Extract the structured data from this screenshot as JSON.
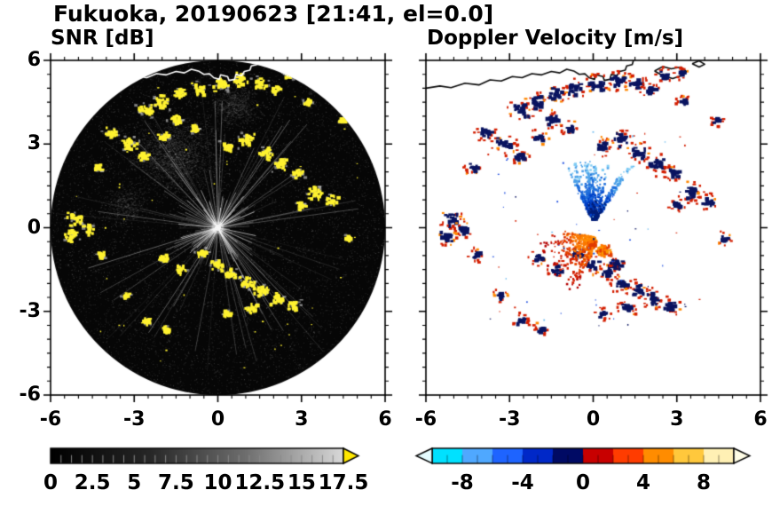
{
  "title": "Fukuoka, 20190623 [21:41, el=0.0]",
  "panels": {
    "snr": {
      "title": "SNR [dB]"
    },
    "doppler": {
      "title": "Doppler Velocity [m/s]"
    }
  },
  "chart_data": [
    {
      "type": "heatmap",
      "title": "SNR [dB]",
      "xlim": [
        -6,
        6
      ],
      "ylim": [
        -6,
        6
      ],
      "xticks": [
        -6,
        -3,
        0,
        3,
        6
      ],
      "xtick_labels": [
        "-6",
        "-3",
        "0",
        "3",
        "6"
      ],
      "yticks": [
        6,
        3,
        0,
        -3,
        -6
      ],
      "ytick_labels": [
        "6",
        "3",
        "0",
        "-3",
        "-6"
      ],
      "minor_tick_step": 0.5,
      "scan_radius": 6,
      "background": "#060606",
      "echo_color": "#FFF230",
      "colorbar": {
        "range": [
          0,
          17.5
        ],
        "tick_values": [
          0,
          2.5,
          5,
          7.5,
          10,
          12.5,
          15,
          17.5
        ],
        "tick_labels": [
          "0",
          "2.5",
          "5",
          "7.5",
          "10",
          "12.5",
          "15",
          "17.5"
        ],
        "gradient": [
          "#000000",
          "#262626",
          "#6E6E6E",
          "#D9D9D9"
        ],
        "over_arrow_color": "#FFE800"
      },
      "texture": {
        "noise_n": 16000,
        "streak_n": 120,
        "spoke_n": 14,
        "bright_n": 55,
        "clouds": [
          {
            "x": -1.6,
            "y": 2.6,
            "sigma": 2.1,
            "n": 2600
          },
          {
            "x": 0.6,
            "y": 4.4,
            "sigma": 1.2,
            "n": 900
          },
          {
            "x": -3.3,
            "y": 0.8,
            "sigma": 1.0,
            "n": 500
          }
        ]
      },
      "echo_clusters": [
        [
          -2.6,
          4.25,
          1.6
        ],
        [
          -2.05,
          4.55,
          1.5
        ],
        [
          -1.4,
          4.85,
          1.3
        ],
        [
          -0.7,
          5.0,
          1.4
        ],
        [
          0.1,
          5.15,
          1.6
        ],
        [
          0.8,
          5.35,
          1.6
        ],
        [
          1.5,
          5.2,
          1.3
        ],
        [
          2.0,
          5.0,
          1.0
        ],
        [
          2.5,
          5.5,
          0.9
        ],
        [
          3.1,
          5.6,
          0.7
        ],
        [
          -3.9,
          3.45,
          1.2
        ],
        [
          -3.25,
          3.05,
          1.6
        ],
        [
          -2.7,
          2.6,
          1.0
        ],
        [
          -4.35,
          2.2,
          0.9
        ],
        [
          -2.0,
          3.3,
          1.0
        ],
        [
          -1.55,
          3.9,
          1.2
        ],
        [
          -0.85,
          3.6,
          0.9
        ],
        [
          0.3,
          2.95,
          1.2
        ],
        [
          1.0,
          3.2,
          1.5
        ],
        [
          1.65,
          2.7,
          1.5
        ],
        [
          2.25,
          2.3,
          1.5
        ],
        [
          2.85,
          2.0,
          1.2
        ],
        [
          3.2,
          4.55,
          0.8
        ],
        [
          4.4,
          3.9,
          0.7
        ],
        [
          3.45,
          1.3,
          1.5
        ],
        [
          4.05,
          1.0,
          1.2
        ],
        [
          2.95,
          0.85,
          0.9
        ],
        [
          4.65,
          -0.35,
          0.7
        ],
        [
          -5.15,
          0.35,
          1.5
        ],
        [
          -5.3,
          -0.25,
          1.4
        ],
        [
          -4.7,
          0.0,
          1.1
        ],
        [
          -4.25,
          -0.95,
          0.9
        ],
        [
          -2.0,
          -1.05,
          0.9
        ],
        [
          -1.35,
          -1.45,
          1.1
        ],
        [
          -0.6,
          -0.9,
          1.1
        ],
        [
          -0.05,
          -1.3,
          1.3
        ],
        [
          0.5,
          -1.6,
          1.3
        ],
        [
          1.0,
          -1.95,
          1.4
        ],
        [
          1.55,
          -2.2,
          1.4
        ],
        [
          2.1,
          -2.5,
          1.4
        ],
        [
          2.7,
          -2.75,
          1.2
        ],
        [
          1.15,
          -2.85,
          1.1
        ],
        [
          -2.6,
          -3.3,
          0.9
        ],
        [
          -1.9,
          -3.6,
          0.8
        ],
        [
          -3.35,
          -2.4,
          0.7
        ],
        [
          0.3,
          -3.05,
          0.8
        ]
      ]
    },
    {
      "type": "heatmap",
      "title": "Doppler Velocity [m/s]",
      "xlim": [
        -6,
        6
      ],
      "ylim": [
        -6,
        6
      ],
      "xticks": [
        -6,
        -3,
        0,
        3,
        6
      ],
      "xtick_labels": [
        "-6",
        "-3",
        "0",
        "3",
        "6"
      ],
      "minor_tick_step": 0.5,
      "background": "#FFFFFF",
      "echo_clusters_shared_with_snr": true,
      "cluster_core_color": "#0A1460",
      "cluster_rim_color": "#D41E00",
      "cluster_accent_color": "#FF8700",
      "colorbar": {
        "range": [
          -10,
          10
        ],
        "tick_values": [
          -8,
          -4,
          0,
          4,
          8
        ],
        "tick_labels": [
          "-8",
          "-4",
          "0",
          "4",
          "8"
        ],
        "segment_colors": [
          "#00E1FF",
          "#4FA8FF",
          "#1E64FF",
          "#0028C8",
          "#000A64",
          "#C80000",
          "#FF3C00",
          "#FF8C00",
          "#FFC83C",
          "#FFF0B4"
        ],
        "under_arrow_color": "#E4FCFF",
        "over_arrow_color": "#FFFDE6"
      },
      "fans": [
        {
          "name": "upper-blue-fan",
          "cx": 0.0,
          "cy": 0.25,
          "a0": 55,
          "a1": 118,
          "n": 85,
          "l0": 0.3,
          "l1": 2.4,
          "palette": [
            "#001E78",
            "#0041C8",
            "#1E6EDC",
            "#4BA0E8",
            "#7FCCF4"
          ]
        },
        {
          "name": "lower-orange-fan",
          "cx": 0.1,
          "cy": -0.35,
          "a0": 168,
          "a1": 252,
          "n": 75,
          "l0": 0.25,
          "l1": 2.1,
          "palette": [
            "#FF8C00",
            "#FA7800",
            "#E64400",
            "#D21E00",
            "#B40000"
          ]
        }
      ],
      "dense_patches": [
        {
          "x": 0.35,
          "y": -0.8,
          "s": 1.7,
          "colors": [
            "#FF7800",
            "#FA9600",
            "#E13C00"
          ]
        },
        {
          "x": 0.75,
          "y": -1.25,
          "s": 1.5,
          "colors": [
            "#0A1460",
            "#0A1460",
            "#D41E00"
          ]
        },
        {
          "x": -0.1,
          "y": -0.55,
          "s": 1.0,
          "colors": [
            "#E13C00",
            "#FF7800"
          ]
        }
      ],
      "speck_colors": [
        "#D41E00",
        "#2050E0",
        "#0A1460",
        "#66B8F0"
      ],
      "speck_n": 70
    }
  ],
  "coastline": [
    [
      [
        -6,
        5.0
      ],
      [
        -5.5,
        5.08
      ],
      [
        -5.1,
        5.02
      ],
      [
        -4.6,
        5.18
      ],
      [
        -4.1,
        5.12
      ],
      [
        -3.7,
        5.3
      ],
      [
        -3.3,
        5.26
      ],
      [
        -2.9,
        5.42
      ],
      [
        -2.55,
        5.38
      ],
      [
        -2.2,
        5.52
      ],
      [
        -1.85,
        5.48
      ],
      [
        -1.5,
        5.6
      ],
      [
        -1.2,
        5.55
      ],
      [
        -0.95,
        5.68
      ],
      [
        -0.7,
        5.62
      ],
      [
        -0.5,
        5.5
      ],
      [
        -0.3,
        5.52
      ],
      [
        -0.15,
        5.38
      ],
      [
        0.05,
        5.32
      ],
      [
        0.1,
        5.48
      ],
      [
        0.35,
        5.42
      ],
      [
        0.4,
        5.28
      ],
      [
        0.6,
        5.32
      ],
      [
        0.65,
        5.5
      ],
      [
        0.85,
        5.45
      ],
      [
        0.95,
        5.6
      ],
      [
        1.15,
        5.65
      ],
      [
        1.2,
        5.8
      ],
      [
        1.4,
        5.85
      ],
      [
        1.45,
        6.02
      ]
    ],
    [
      [
        2.2,
        5.62
      ],
      [
        2.5,
        5.45
      ],
      [
        2.85,
        5.35
      ],
      [
        3.15,
        5.45
      ],
      [
        3.35,
        5.6
      ],
      [
        3.15,
        5.76
      ],
      [
        2.8,
        5.7
      ],
      [
        2.5,
        5.78
      ],
      [
        2.2,
        5.62
      ]
    ],
    [
      [
        3.55,
        5.88
      ],
      [
        3.8,
        5.76
      ],
      [
        4.0,
        5.86
      ],
      [
        3.8,
        5.98
      ],
      [
        3.55,
        5.88
      ]
    ]
  ]
}
